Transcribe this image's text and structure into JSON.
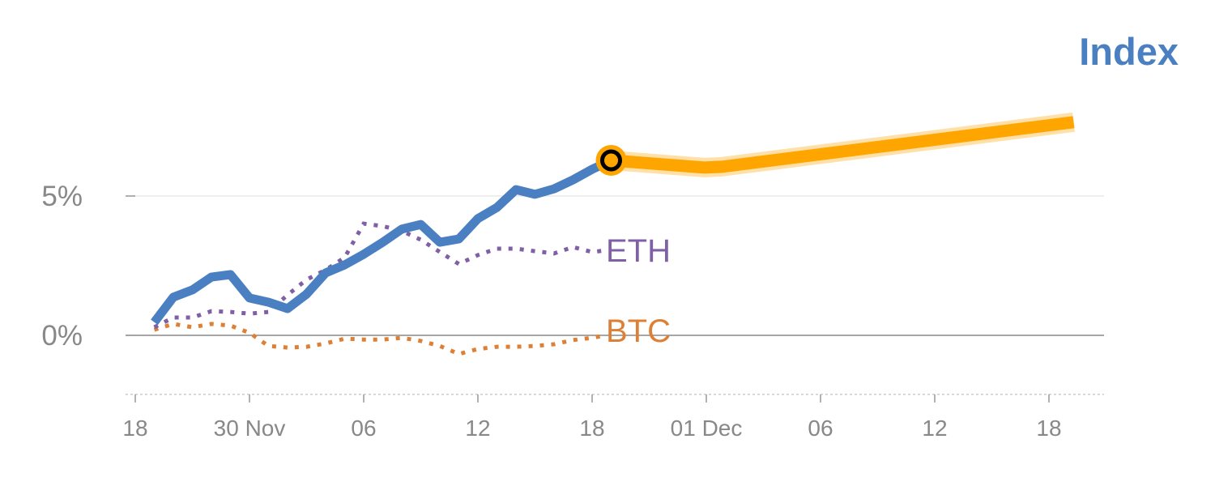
{
  "chart_data": {
    "type": "line",
    "title": "Index",
    "xlabel": "",
    "ylabel": "",
    "ylim": [
      -2.12,
      8.5
    ],
    "xlim": [
      -0.5,
      50.5
    ],
    "x_ticks": [
      {
        "x": 0,
        "label": "18"
      },
      {
        "x": 6,
        "label": "30 Nov"
      },
      {
        "x": 12,
        "label": "06"
      },
      {
        "x": 18,
        "label": "12"
      },
      {
        "x": 24,
        "label": "18"
      },
      {
        "x": 30,
        "label": "01 Dec"
      },
      {
        "x": 36,
        "label": "06"
      },
      {
        "x": 42,
        "label": "12"
      },
      {
        "x": 48,
        "label": "18"
      }
    ],
    "y_ticks": [
      {
        "y": 0,
        "label": "0%"
      },
      {
        "y": 5,
        "label": "5%"
      }
    ],
    "colors": {
      "index": "#4a7fc1",
      "forecast": "#ffa500",
      "eth": "#7f5fa6",
      "btc": "#dd7f34",
      "title": "#4a7fc1"
    },
    "series": [
      {
        "name": "Index",
        "style": "solid",
        "x": [
          1,
          2,
          3,
          4,
          5,
          6,
          7,
          8,
          9,
          10,
          11,
          12,
          13,
          14,
          15,
          16,
          17,
          18,
          19,
          20,
          21,
          22,
          23,
          24,
          25
        ],
        "y": [
          0.47,
          1.37,
          1.63,
          2.09,
          2.18,
          1.34,
          1.19,
          0.96,
          1.48,
          2.24,
          2.53,
          2.91,
          3.34,
          3.81,
          3.98,
          3.34,
          3.46,
          4.19,
          4.59,
          5.23,
          5.06,
          5.26,
          5.58,
          5.96,
          6.28
        ]
      },
      {
        "name": "Forecast",
        "style": "thick",
        "x": [
          25,
          29.9,
          30.8,
          49.3
        ],
        "y": [
          6.28,
          6.02,
          6.05,
          7.65
        ]
      },
      {
        "name": "ETH",
        "style": "dotted",
        "x": [
          1,
          2,
          3,
          4,
          5,
          6,
          7,
          8,
          9,
          10,
          11,
          12,
          13,
          14,
          15,
          16,
          17,
          18,
          19,
          20,
          21,
          22,
          23,
          24,
          24.7
        ],
        "y": [
          0.29,
          0.64,
          0.64,
          0.87,
          0.84,
          0.78,
          0.84,
          1.45,
          2.0,
          2.35,
          2.79,
          4.01,
          3.92,
          3.75,
          3.43,
          2.99,
          2.56,
          2.88,
          3.11,
          3.11,
          3.02,
          2.94,
          3.17,
          2.99,
          3.05
        ]
      },
      {
        "name": "BTC",
        "style": "dotted",
        "x": [
          1,
          2,
          3,
          4,
          5,
          6,
          7,
          8,
          9,
          10,
          11,
          12,
          13,
          14,
          15,
          16,
          17,
          18,
          19,
          20,
          21,
          22,
          23,
          24,
          24.7
        ],
        "y": [
          0.2,
          0.41,
          0.29,
          0.41,
          0.35,
          0.09,
          -0.38,
          -0.44,
          -0.41,
          -0.29,
          -0.12,
          -0.15,
          -0.15,
          -0.09,
          -0.2,
          -0.38,
          -0.67,
          -0.49,
          -0.41,
          -0.41,
          -0.38,
          -0.32,
          -0.17,
          -0.09,
          0
        ]
      }
    ],
    "annotations": [
      {
        "text": "ETH",
        "series": "ETH"
      },
      {
        "text": "BTC",
        "series": "BTC"
      }
    ],
    "highlight_point": {
      "x": 25,
      "y": 6.28
    },
    "grid": true,
    "legend": "inline-labels"
  }
}
